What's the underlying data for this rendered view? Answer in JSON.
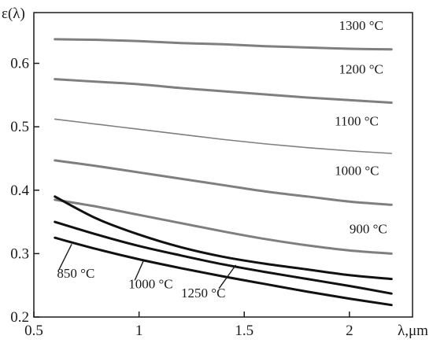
{
  "chart_data": {
    "type": "line",
    "title": "",
    "xlabel": "λ,μm",
    "ylabel": "ε(λ)",
    "xlim": [
      0.5,
      2.3
    ],
    "ylim": [
      0.2,
      0.68
    ],
    "x_ticks": [
      "0.5",
      "1",
      "1.5",
      "2"
    ],
    "y_ticks": [
      "0.2",
      "0.3",
      "0.4",
      "0.5",
      "0.6"
    ],
    "grid": false,
    "series": [
      {
        "name": "1300 °C",
        "color": "#7f7f7f",
        "width": 3,
        "x": [
          0.6,
          0.8,
          1.0,
          1.2,
          1.4,
          1.6,
          1.8,
          2.0,
          2.2
        ],
        "y": [
          0.638,
          0.637,
          0.635,
          0.632,
          0.63,
          0.627,
          0.625,
          0.623,
          0.622
        ]
      },
      {
        "name": "1200 °C",
        "color": "#7f7f7f",
        "width": 3,
        "x": [
          0.6,
          0.8,
          1.0,
          1.2,
          1.4,
          1.6,
          1.8,
          2.0,
          2.2
        ],
        "y": [
          0.575,
          0.571,
          0.567,
          0.561,
          0.556,
          0.551,
          0.546,
          0.542,
          0.538
        ]
      },
      {
        "name": "1100 °C",
        "color": "#7f7f7f",
        "width": 1.6,
        "x": [
          0.6,
          0.8,
          1.0,
          1.2,
          1.4,
          1.6,
          1.8,
          2.0,
          2.2
        ],
        "y": [
          0.512,
          0.504,
          0.496,
          0.488,
          0.48,
          0.473,
          0.467,
          0.462,
          0.458
        ]
      },
      {
        "name": "1000 °C",
        "color": "#7f7f7f",
        "width": 3,
        "x": [
          0.6,
          0.8,
          1.0,
          1.2,
          1.4,
          1.6,
          1.8,
          2.0,
          2.2
        ],
        "y": [
          0.447,
          0.438,
          0.428,
          0.418,
          0.408,
          0.398,
          0.39,
          0.382,
          0.377
        ]
      },
      {
        "name": "900 °C",
        "color": "#7f7f7f",
        "width": 3,
        "x": [
          0.6,
          0.8,
          1.0,
          1.2,
          1.4,
          1.6,
          1.8,
          2.0,
          2.2
        ],
        "y": [
          0.385,
          0.374,
          0.361,
          0.348,
          0.335,
          0.323,
          0.313,
          0.305,
          0.3
        ]
      },
      {
        "name": "1250 °C",
        "color": "#111111",
        "width": 3,
        "x": [
          0.6,
          0.8,
          1.0,
          1.2,
          1.4,
          1.6,
          1.8,
          2.0,
          2.2
        ],
        "y": [
          0.39,
          0.355,
          0.33,
          0.31,
          0.295,
          0.284,
          0.275,
          0.266,
          0.26
        ]
      },
      {
        "name": "1000 °C",
        "color": "#111111",
        "width": 3,
        "x": [
          0.6,
          0.8,
          1.0,
          1.2,
          1.4,
          1.6,
          1.8,
          2.0,
          2.2
        ],
        "y": [
          0.35,
          0.33,
          0.312,
          0.297,
          0.283,
          0.271,
          0.26,
          0.249,
          0.237
        ]
      },
      {
        "name": "850 °C",
        "color": "#111111",
        "width": 3,
        "x": [
          0.6,
          0.8,
          1.0,
          1.2,
          1.4,
          1.6,
          1.8,
          2.0,
          2.2
        ],
        "y": [
          0.325,
          0.307,
          0.291,
          0.277,
          0.264,
          0.252,
          0.24,
          0.229,
          0.219
        ]
      }
    ],
    "annotations": [
      {
        "text": "1300 °C",
        "x": 1.95,
        "y": 0.653
      },
      {
        "text": "1200 °C",
        "x": 1.95,
        "y": 0.584
      },
      {
        "text": "1100 °C",
        "x": 1.93,
        "y": 0.502
      },
      {
        "text": "1000 °C",
        "x": 1.93,
        "y": 0.424
      },
      {
        "text": "900 °C",
        "x": 2.0,
        "y": 0.332
      },
      {
        "text": "850 °C",
        "x": 0.61,
        "y": 0.262
      },
      {
        "text": "1000 °C",
        "x": 0.95,
        "y": 0.245
      },
      {
        "text": "1250 °C",
        "x": 1.2,
        "y": 0.231
      }
    ],
    "leaders": [
      {
        "from": [
          0.68,
          0.315
        ],
        "to": [
          0.62,
          0.275
        ]
      },
      {
        "from": [
          1.02,
          0.288
        ],
        "to": [
          0.98,
          0.258
        ]
      },
      {
        "from": [
          1.46,
          0.282
        ],
        "to": [
          1.38,
          0.245
        ]
      }
    ]
  }
}
